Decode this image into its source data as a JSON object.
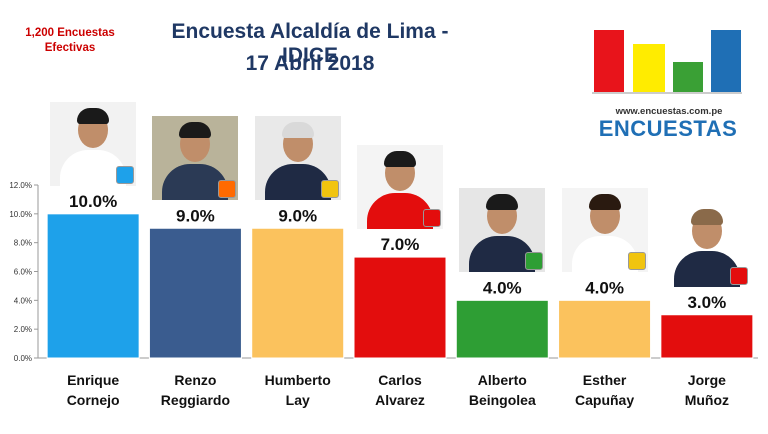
{
  "sample_note": {
    "line1": "1,200 Encuestas",
    "line2": "Efectivas"
  },
  "header": {
    "title_line1": "Encuesta Alcaldía de Lima - IDICE",
    "title_line2": "17 Abril 2018"
  },
  "brand": {
    "url": "www.encuestas.com.pe",
    "name": "ENCUESTAS",
    "logo_bar_colors": [
      "#e8141b",
      "#ffec00",
      "#3aa035",
      "#1f6fb5"
    ]
  },
  "chart_data": {
    "type": "bar",
    "title": "Encuesta Alcaldía de Lima - IDICE",
    "categories": [
      "Enrique Cornejo",
      "Renzo Reggiardo",
      "Humberto Lay",
      "Carlos Alvarez",
      "Alberto Beingolea",
      "Esther Capuñay",
      "Jorge Muñoz"
    ],
    "category_lines": [
      [
        "Enrique",
        "Cornejo"
      ],
      [
        "Renzo",
        "Reggiardo"
      ],
      [
        "Humberto",
        "Lay"
      ],
      [
        "Carlos",
        "Alvarez"
      ],
      [
        "Alberto",
        "Beingolea"
      ],
      [
        "Esther",
        "Capuñay"
      ],
      [
        "Jorge",
        "Muñoz"
      ]
    ],
    "values": [
      10.0,
      9.0,
      9.0,
      7.0,
      4.0,
      4.0,
      3.0
    ],
    "value_labels": [
      "10.0%",
      "9.0%",
      "9.0%",
      "7.0%",
      "4.0%",
      "4.0%",
      "3.0%"
    ],
    "colors": [
      "#1ea1ea",
      "#3a5c8f",
      "#fbc25d",
      "#e30d0d",
      "#2e9e34",
      "#fbc25d",
      "#e30d0d"
    ],
    "ylim": [
      0,
      12
    ],
    "yticks": [
      "0.0%",
      "2.0%",
      "4.0%",
      "6.0%",
      "8.0%",
      "10.0%",
      "12.0%"
    ],
    "grid": false,
    "legend": "none",
    "xlabel": "",
    "ylabel": ""
  },
  "photos": [
    {
      "name": "photo-enrique-cornejo",
      "bg": "#f2f2f2",
      "shirt": "#ffffff",
      "hair": "#1a1a1a",
      "party": "#1ea1ea"
    },
    {
      "name": "photo-renzo-reggiardo",
      "bg": "#b9b39a",
      "shirt": "#2b3a55",
      "hair": "#1a1a1a",
      "party": "#ff6a00"
    },
    {
      "name": "photo-humberto-lay",
      "bg": "#e9e9e9",
      "shirt": "#1f2a44",
      "hair": "#d9d9d9",
      "party": "#f1c40f"
    },
    {
      "name": "photo-carlos-alvarez",
      "bg": "#f4f4f4",
      "shirt": "#e30d0d",
      "hair": "#1a1a1a",
      "party": "#e30d0d"
    },
    {
      "name": "photo-alberto-beingolea",
      "bg": "#e6e6e6",
      "shirt": "#1f2a44",
      "hair": "#1a1a1a",
      "party": "#2e9e34"
    },
    {
      "name": "photo-esther-capunay",
      "bg": "#f4f4f4",
      "shirt": "#ffffff",
      "hair": "#2a1a10",
      "party": "#f1c40f"
    },
    {
      "name": "photo-jorge-munoz",
      "bg": "#ffffff",
      "shirt": "#1f2a44",
      "hair": "#8a6a4a",
      "party": "#e30d0d"
    }
  ]
}
